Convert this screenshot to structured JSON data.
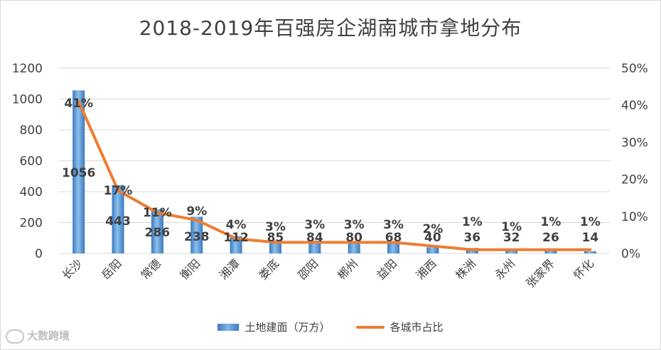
{
  "chart_data": {
    "type": "bar",
    "title": "2018-2019年百强房企湖南城市拿地分布",
    "categories": [
      "长沙",
      "岳阳",
      "常德",
      "衡阳",
      "湘潭",
      "娄底",
      "邵阳",
      "郴州",
      "益阳",
      "湘西",
      "株洲",
      "永州",
      "张家界",
      "怀化"
    ],
    "series": [
      {
        "name": "土地建面（万方）",
        "type": "bar",
        "axis": "left",
        "color": "#5b9bd5",
        "values": [
          1056,
          443,
          286,
          238,
          112,
          85,
          84,
          80,
          68,
          40,
          36,
          32,
          26,
          14
        ],
        "labels": [
          "1056",
          "443",
          "286",
          "238",
          "112",
          "85",
          "84",
          "80",
          "68",
          "40",
          "36",
          "32",
          "26",
          "14"
        ]
      },
      {
        "name": "各城市占比",
        "type": "line",
        "axis": "right",
        "color": "#ed7d31",
        "values": [
          41,
          17,
          11,
          9,
          4,
          3,
          3,
          3,
          3,
          2,
          1,
          1,
          1,
          1
        ],
        "labels": [
          "41%",
          "17%",
          "11%",
          "9%",
          "4%",
          "3%",
          "3%",
          "3%",
          "3%",
          "2%",
          "1%",
          "1%",
          "1%",
          "1%"
        ]
      }
    ],
    "y_left": {
      "ylim": [
        0,
        1200
      ],
      "ticks": [
        "0",
        "200",
        "400",
        "600",
        "800",
        "1000",
        "1200"
      ]
    },
    "y_right": {
      "ylim": [
        0,
        50
      ],
      "ticks": [
        "0%",
        "10%",
        "20%",
        "30%",
        "40%",
        "50%"
      ]
    },
    "grid": true,
    "legend_position": "bottom"
  },
  "watermark": {
    "text": "大数跨境",
    "icon": "wechat-bubble-icon"
  }
}
